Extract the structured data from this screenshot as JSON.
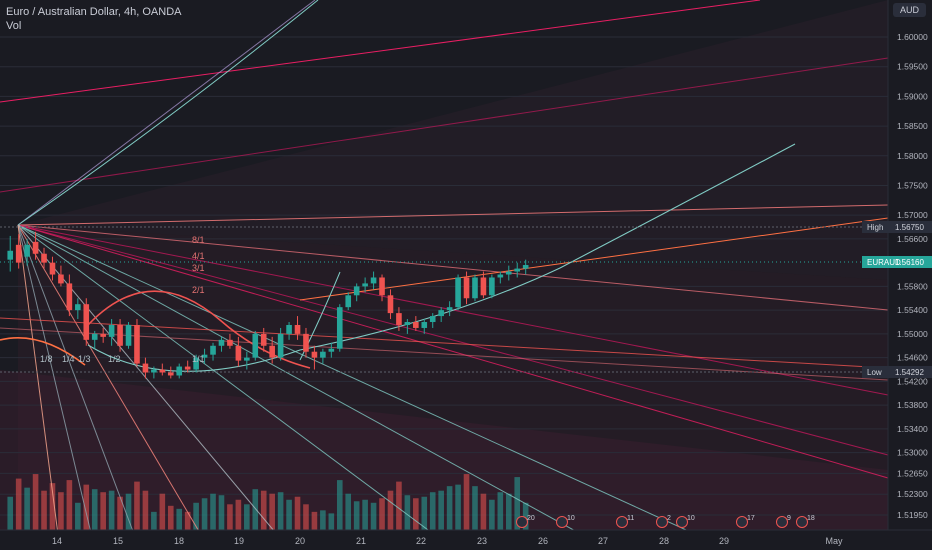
{
  "header": {
    "title": "Euro / Australian Dollar, 4h, OANDA",
    "volume_label": "Vol",
    "currency": "AUD"
  },
  "price_scale": {
    "ticks": [
      "1.60000",
      "1.59500",
      "1.59000",
      "1.58500",
      "1.58000",
      "1.57500",
      "1.57000",
      "1.56600",
      "1.55800",
      "1.55400",
      "1.55000",
      "1.54600",
      "1.54200",
      "1.53800",
      "1.53400",
      "1.53000",
      "1.52650",
      "1.52300",
      "1.51950"
    ],
    "high_label": "High",
    "high_value": "1.56750",
    "low_label": "Low",
    "low_value": "1.54292",
    "symbol_label": "EURAUD",
    "last_value": "1.56160"
  },
  "time_axis": {
    "labels": [
      "14",
      "15",
      "18",
      "19",
      "20",
      "21",
      "22",
      "23",
      "26",
      "27",
      "28",
      "29",
      "May"
    ]
  },
  "fan_labels": [
    "8/1",
    "4/1",
    "3/1",
    "2/1",
    "1/8",
    "1/4",
    "1/3",
    "1/2",
    "1/1"
  ],
  "events": [
    "20",
    "10",
    "11",
    "2",
    "10",
    "17",
    "9",
    "18"
  ],
  "colors": {
    "up": "#26a69a",
    "down": "#ef5350",
    "bg": "#1a1b22",
    "text": "#b2b5be",
    "arc": "#ef5350",
    "curve": "#80cbc4"
  },
  "chart_data": {
    "type": "candlestick",
    "symbol": "EURAUD",
    "interval": "4h",
    "y_range": [
      1.5175,
      1.6075
    ],
    "candles": [
      {
        "o": 1.5625,
        "h": 1.5665,
        "l": 1.5605,
        "c": 1.564,
        "v": 0.22
      },
      {
        "o": 1.565,
        "h": 1.5668,
        "l": 1.561,
        "c": 1.562,
        "v": 0.34
      },
      {
        "o": 1.563,
        "h": 1.566,
        "l": 1.5615,
        "c": 1.565,
        "v": 0.28
      },
      {
        "o": 1.5655,
        "h": 1.5672,
        "l": 1.5625,
        "c": 1.5635,
        "v": 0.37
      },
      {
        "o": 1.5635,
        "h": 1.5645,
        "l": 1.561,
        "c": 1.562,
        "v": 0.26
      },
      {
        "o": 1.562,
        "h": 1.563,
        "l": 1.559,
        "c": 1.56,
        "v": 0.31
      },
      {
        "o": 1.56,
        "h": 1.5615,
        "l": 1.558,
        "c": 1.5585,
        "v": 0.25
      },
      {
        "o": 1.5585,
        "h": 1.56,
        "l": 1.553,
        "c": 1.554,
        "v": 0.33
      },
      {
        "o": 1.554,
        "h": 1.556,
        "l": 1.5525,
        "c": 1.555,
        "v": 0.18
      },
      {
        "o": 1.555,
        "h": 1.556,
        "l": 1.548,
        "c": 1.549,
        "v": 0.3
      },
      {
        "o": 1.549,
        "h": 1.5505,
        "l": 1.5475,
        "c": 1.55,
        "v": 0.27
      },
      {
        "o": 1.55,
        "h": 1.551,
        "l": 1.5485,
        "c": 1.5495,
        "v": 0.25
      },
      {
        "o": 1.5495,
        "h": 1.5525,
        "l": 1.548,
        "c": 1.5515,
        "v": 0.26
      },
      {
        "o": 1.5515,
        "h": 1.5525,
        "l": 1.547,
        "c": 1.548,
        "v": 0.22
      },
      {
        "o": 1.548,
        "h": 1.552,
        "l": 1.5475,
        "c": 1.5515,
        "v": 0.24
      },
      {
        "o": 1.5515,
        "h": 1.5525,
        "l": 1.5445,
        "c": 1.545,
        "v": 0.32
      },
      {
        "o": 1.545,
        "h": 1.546,
        "l": 1.5425,
        "c": 1.5435,
        "v": 0.26
      },
      {
        "o": 1.5435,
        "h": 1.5445,
        "l": 1.5425,
        "c": 1.544,
        "v": 0.12
      },
      {
        "o": 1.544,
        "h": 1.545,
        "l": 1.543,
        "c": 1.5435,
        "v": 0.24
      },
      {
        "o": 1.5435,
        "h": 1.5445,
        "l": 1.5425,
        "c": 1.543,
        "v": 0.16
      },
      {
        "o": 1.543,
        "h": 1.545,
        "l": 1.5425,
        "c": 1.5445,
        "v": 0.14
      },
      {
        "o": 1.5445,
        "h": 1.5455,
        "l": 1.5435,
        "c": 1.544,
        "v": 0.12
      },
      {
        "o": 1.544,
        "h": 1.5465,
        "l": 1.5435,
        "c": 1.546,
        "v": 0.18
      },
      {
        "o": 1.546,
        "h": 1.5475,
        "l": 1.545,
        "c": 1.5465,
        "v": 0.21
      },
      {
        "o": 1.5465,
        "h": 1.5485,
        "l": 1.5455,
        "c": 1.548,
        "v": 0.24
      },
      {
        "o": 1.548,
        "h": 1.5495,
        "l": 1.547,
        "c": 1.549,
        "v": 0.23
      },
      {
        "o": 1.549,
        "h": 1.55,
        "l": 1.5475,
        "c": 1.548,
        "v": 0.17
      },
      {
        "o": 1.548,
        "h": 1.5495,
        "l": 1.5445,
        "c": 1.5455,
        "v": 0.2
      },
      {
        "o": 1.5455,
        "h": 1.547,
        "l": 1.544,
        "c": 1.546,
        "v": 0.17
      },
      {
        "o": 1.546,
        "h": 1.5505,
        "l": 1.5455,
        "c": 1.55,
        "v": 0.27
      },
      {
        "o": 1.55,
        "h": 1.551,
        "l": 1.547,
        "c": 1.548,
        "v": 0.26
      },
      {
        "o": 1.548,
        "h": 1.5495,
        "l": 1.545,
        "c": 1.546,
        "v": 0.24
      },
      {
        "o": 1.546,
        "h": 1.551,
        "l": 1.5455,
        "c": 1.55,
        "v": 0.25
      },
      {
        "o": 1.55,
        "h": 1.552,
        "l": 1.549,
        "c": 1.5515,
        "v": 0.2
      },
      {
        "o": 1.5515,
        "h": 1.553,
        "l": 1.549,
        "c": 1.55,
        "v": 0.22
      },
      {
        "o": 1.55,
        "h": 1.551,
        "l": 1.546,
        "c": 1.547,
        "v": 0.17
      },
      {
        "o": 1.547,
        "h": 1.548,
        "l": 1.544,
        "c": 1.546,
        "v": 0.12
      },
      {
        "o": 1.546,
        "h": 1.5475,
        "l": 1.545,
        "c": 1.547,
        "v": 0.13
      },
      {
        "o": 1.547,
        "h": 1.5485,
        "l": 1.546,
        "c": 1.5475,
        "v": 0.11
      },
      {
        "o": 1.5475,
        "h": 1.555,
        "l": 1.547,
        "c": 1.5545,
        "v": 0.33
      },
      {
        "o": 1.5545,
        "h": 1.557,
        "l": 1.554,
        "c": 1.5565,
        "v": 0.24
      },
      {
        "o": 1.5565,
        "h": 1.5585,
        "l": 1.5555,
        "c": 1.558,
        "v": 0.19
      },
      {
        "o": 1.558,
        "h": 1.5595,
        "l": 1.557,
        "c": 1.5585,
        "v": 0.2
      },
      {
        "o": 1.5585,
        "h": 1.5605,
        "l": 1.5575,
        "c": 1.5595,
        "v": 0.18
      },
      {
        "o": 1.5595,
        "h": 1.56,
        "l": 1.5555,
        "c": 1.5565,
        "v": 0.21
      },
      {
        "o": 1.5565,
        "h": 1.5575,
        "l": 1.5525,
        "c": 1.5535,
        "v": 0.26
      },
      {
        "o": 1.5535,
        "h": 1.5545,
        "l": 1.5505,
        "c": 1.5515,
        "v": 0.32
      },
      {
        "o": 1.5515,
        "h": 1.5525,
        "l": 1.55,
        "c": 1.552,
        "v": 0.23
      },
      {
        "o": 1.552,
        "h": 1.553,
        "l": 1.5505,
        "c": 1.551,
        "v": 0.21
      },
      {
        "o": 1.551,
        "h": 1.5525,
        "l": 1.55,
        "c": 1.552,
        "v": 0.22
      },
      {
        "o": 1.552,
        "h": 1.5535,
        "l": 1.551,
        "c": 1.553,
        "v": 0.25
      },
      {
        "o": 1.553,
        "h": 1.5545,
        "l": 1.552,
        "c": 1.554,
        "v": 0.26
      },
      {
        "o": 1.554,
        "h": 1.5555,
        "l": 1.553,
        "c": 1.5545,
        "v": 0.29
      },
      {
        "o": 1.5545,
        "h": 1.56,
        "l": 1.554,
        "c": 1.5595,
        "v": 0.3
      },
      {
        "o": 1.5595,
        "h": 1.5605,
        "l": 1.555,
        "c": 1.556,
        "v": 0.37
      },
      {
        "o": 1.556,
        "h": 1.56,
        "l": 1.5555,
        "c": 1.5595,
        "v": 0.29
      },
      {
        "o": 1.5595,
        "h": 1.5605,
        "l": 1.556,
        "c": 1.5565,
        "v": 0.24
      },
      {
        "o": 1.5565,
        "h": 1.56,
        "l": 1.556,
        "c": 1.5595,
        "v": 0.2
      },
      {
        "o": 1.5595,
        "h": 1.5605,
        "l": 1.5585,
        "c": 1.56,
        "v": 0.25
      },
      {
        "o": 1.56,
        "h": 1.5615,
        "l": 1.559,
        "c": 1.5605,
        "v": 0.24
      },
      {
        "o": 1.5605,
        "h": 1.562,
        "l": 1.5595,
        "c": 1.561,
        "v": 0.35
      },
      {
        "o": 1.561,
        "h": 1.5625,
        "l": 1.56,
        "c": 1.5616,
        "v": 0.18
      }
    ]
  }
}
